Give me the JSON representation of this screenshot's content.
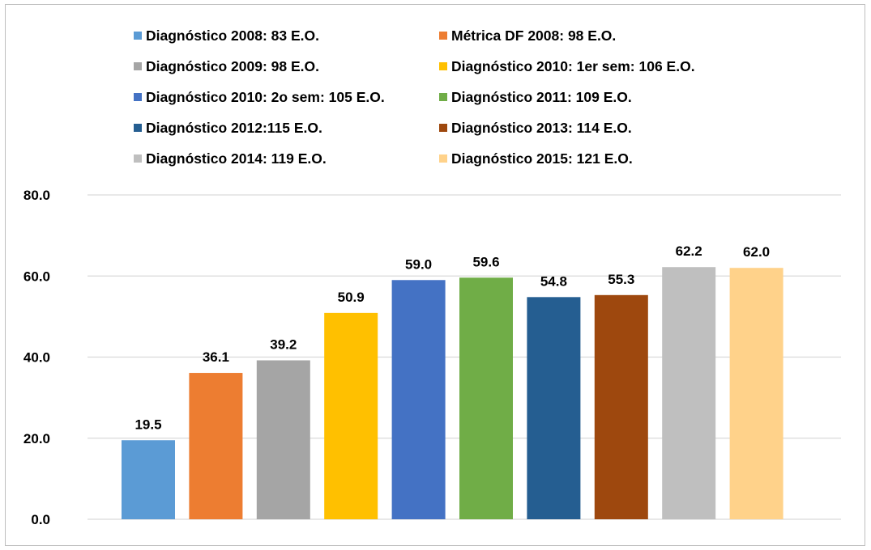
{
  "chart_data": {
    "type": "bar",
    "title": "",
    "xlabel": "",
    "ylabel": "",
    "ylim": [
      0,
      80
    ],
    "yticks": [
      "0.0",
      "20.0",
      "40.0",
      "60.0",
      "80.0"
    ],
    "grid": true,
    "legend_position": "top",
    "categories": [
      "Diagnóstico 2008: 83 E.O.",
      "Métrica DF 2008: 98 E.O.",
      "Diagnóstico 2009: 98 E.O.",
      "Diagnóstico 2010: 1er sem: 106 E.O.",
      "Diagnóstico 2010: 2o sem: 105 E.O.",
      "Diagnóstico 2011: 109 E.O.",
      "Diagnóstico 2012:115 E.O.",
      "Diagnóstico 2013: 114 E.O.",
      "Diagnóstico 2014: 119 E.O.",
      "Diagnóstico 2015: 121 E.O."
    ],
    "values": [
      19.5,
      36.1,
      39.2,
      50.9,
      59.0,
      59.6,
      54.8,
      55.3,
      62.2,
      62.0
    ],
    "value_labels": [
      "19.5",
      "36.1",
      "39.2",
      "50.9",
      "59.0",
      "59.6",
      "54.8",
      "55.3",
      "62.2",
      "62.0"
    ],
    "colors": [
      "#5b9bd5",
      "#ed7d31",
      "#a5a5a5",
      "#ffc000",
      "#4472c4",
      "#70ad47",
      "#255e91",
      "#9e480e",
      "#bfbfbf",
      "#ffd28a"
    ]
  }
}
